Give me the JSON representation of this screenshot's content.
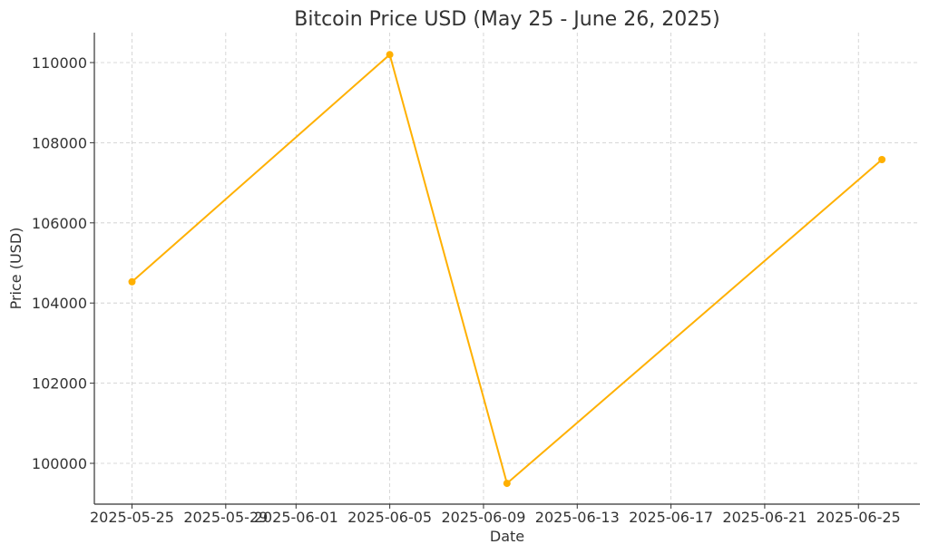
{
  "chart_data": {
    "type": "line",
    "title": "Bitcoin Price USD (May 25 - June 26, 2025)",
    "xlabel": "Date",
    "ylabel": "Price (USD)",
    "x_type": "date",
    "x_ticks": [
      "2025-05-25",
      "2025-05-29",
      "2025-06-01",
      "2025-06-05",
      "2025-06-09",
      "2025-06-13",
      "2025-06-17",
      "2025-06-21",
      "2025-06-25"
    ],
    "y_ticks": [
      100000,
      102000,
      104000,
      106000,
      108000,
      110000
    ],
    "xlim": [
      "2024-05-26",
      "2025-06-28"
    ],
    "ylim": [
      99000,
      110750
    ],
    "grid": true,
    "series": [
      {
        "color": "#FFB000",
        "marker": "circle",
        "points": [
          {
            "x": "2025-05-25",
            "y": 104530
          },
          {
            "x": "2025-06-05",
            "y": 110200
          },
          {
            "x": "2025-06-10",
            "y": 99500
          },
          {
            "x": "2025-06-26",
            "y": 107580
          }
        ]
      }
    ]
  }
}
